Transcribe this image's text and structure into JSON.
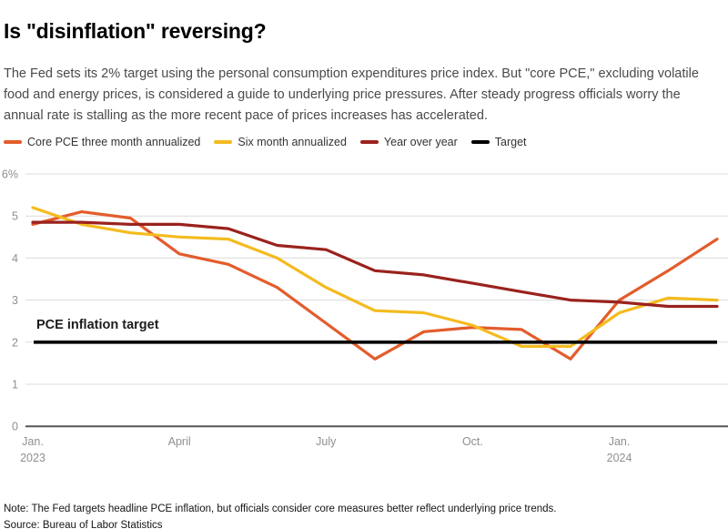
{
  "header": {
    "title": "Is \"disinflation\" reversing?",
    "description": "The Fed sets its 2% target using the personal consumption expenditures price index. But \"core PCE,\" excluding volatile food and energy prices, is considered a guide to underlying price pressures. After steady progress officials worry the annual rate is stalling as the more recent pace of prices increases has accelerated."
  },
  "chart_data": {
    "type": "line",
    "title": "Is \"disinflation\" reversing?",
    "annotation": "PCE inflation target",
    "grid": "horizontal",
    "legend_position": "top-left",
    "ylim": [
      0,
      6
    ],
    "y_ticks": [
      {
        "value": 6,
        "label": "6%"
      },
      {
        "value": 5,
        "label": "5"
      },
      {
        "value": 4,
        "label": "4"
      },
      {
        "value": 3,
        "label": "3"
      },
      {
        "value": 2,
        "label": "2"
      },
      {
        "value": 1,
        "label": "1"
      },
      {
        "value": 0,
        "label": "0"
      }
    ],
    "x": [
      "Jan. 2023",
      "Feb. 2023",
      "Mar. 2023",
      "Apr. 2023",
      "May 2023",
      "Jun. 2023",
      "Jul. 2023",
      "Aug. 2023",
      "Sep. 2023",
      "Oct. 2023",
      "Nov. 2023",
      "Dec. 2023",
      "Jan. 2024",
      "Feb. 2024",
      "Mar. 2024"
    ],
    "x_ticks": [
      {
        "index": 0,
        "label": "Jan.",
        "sub": "2023"
      },
      {
        "index": 3,
        "label": "April"
      },
      {
        "index": 6,
        "label": "July"
      },
      {
        "index": 9,
        "label": "Oct."
      },
      {
        "index": 12,
        "label": "Jan.",
        "sub": "2024"
      }
    ],
    "series": [
      {
        "name": "Core PCE three month annualized",
        "color": "#E35C2C",
        "values": [
          4.8,
          5.1,
          4.95,
          4.1,
          3.85,
          3.3,
          2.45,
          1.6,
          2.25,
          2.35,
          2.3,
          1.6,
          3.0,
          3.7,
          4.45
        ]
      },
      {
        "name": "Six month annualized",
        "color": "#F4BB1F",
        "values": [
          5.2,
          4.8,
          4.6,
          4.5,
          4.45,
          4.0,
          3.3,
          2.75,
          2.7,
          2.4,
          1.9,
          1.9,
          2.7,
          3.05,
          3.0
        ]
      },
      {
        "name": "Year over year",
        "color": "#9A221D",
        "values": [
          4.85,
          4.85,
          4.8,
          4.8,
          4.7,
          4.3,
          4.2,
          3.7,
          3.6,
          3.4,
          3.2,
          3.0,
          2.95,
          2.85,
          2.85
        ]
      }
    ],
    "target_line": {
      "label": "Target",
      "value": 2,
      "color": "#000000"
    }
  },
  "footer": {
    "note": "Note: The Fed targets headline PCE inflation, but officials consider core measures better reflect underlying price trends.",
    "source": "Source: Bureau of Labor Statistics"
  }
}
